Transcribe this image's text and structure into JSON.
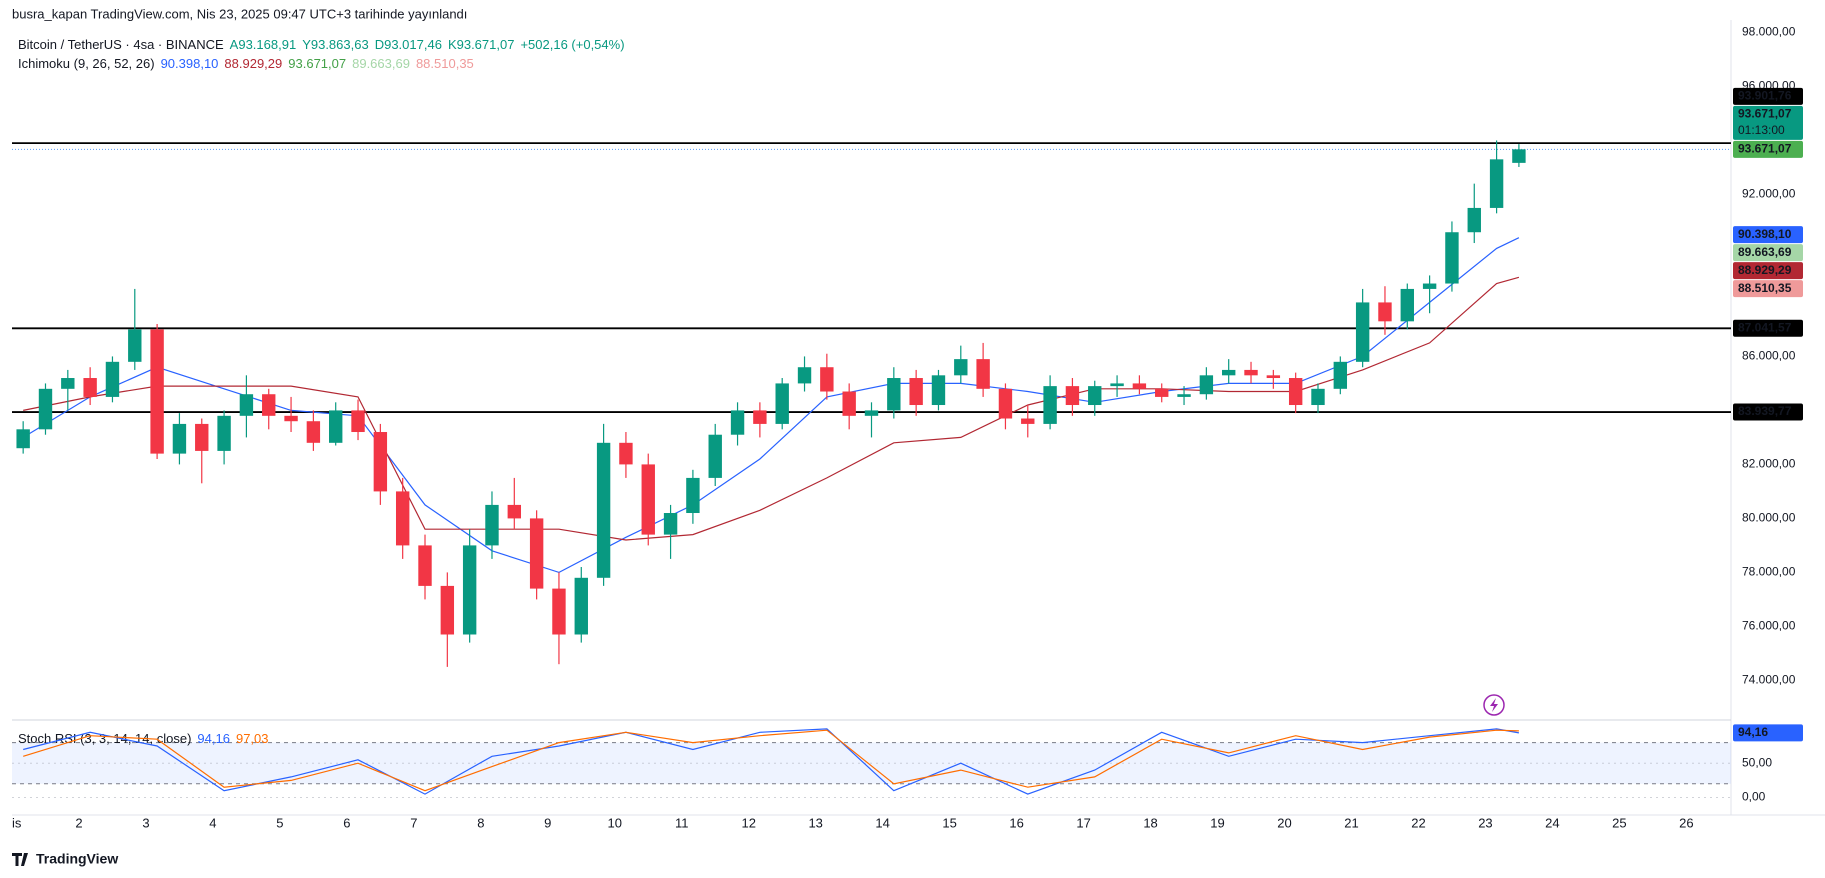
{
  "header": "busra_kapan TradingView.com, Nis 23, 2025 09:47 UTC+3 tarihinde yayınlandı",
  "footer": "TradingView",
  "chart_data": [
    {
      "type": "candlestick",
      "title": "Bitcoin / TetherUS · 4sa · BINANCE",
      "legend_values": [
        "A93.168,91",
        "Y93.863,63",
        "D93.017,46",
        "K93.671,07",
        "+502,16 (+0,54%)"
      ],
      "up_color": "#089981",
      "down_color": "#f23645",
      "open": [
        82600,
        83300,
        84800,
        85200,
        84500,
        85800,
        87000,
        82400,
        83500,
        82500,
        83800,
        84600,
        83800,
        83600,
        82800,
        84000,
        83200,
        81000,
        79000,
        77500,
        75700,
        79000,
        80500,
        80000,
        77400,
        75700,
        77800,
        82800,
        82000,
        79400,
        80200,
        81500,
        83100,
        84000,
        83500,
        85000,
        85600,
        84700,
        83800,
        84000,
        85200,
        84200,
        85300,
        85900,
        84800,
        83700,
        83500,
        84900,
        84200,
        84900,
        85000,
        84800,
        84500,
        84600,
        85300,
        85500,
        85300,
        85200,
        84200,
        84800,
        85800,
        88000,
        87300,
        88500,
        88700,
        90600,
        91500,
        93168.91
      ],
      "high": [
        83600,
        85000,
        85500,
        85600,
        86000,
        88500,
        87200,
        83900,
        83700,
        84000,
        85300,
        84800,
        84500,
        84000,
        84300,
        84400,
        83500,
        81500,
        79400,
        78000,
        79600,
        81000,
        81500,
        80300,
        78000,
        78200,
        83500,
        83200,
        82400,
        80500,
        81800,
        83500,
        84300,
        84300,
        85200,
        86000,
        86100,
        85000,
        84300,
        85600,
        85500,
        85500,
        86400,
        86500,
        85000,
        84200,
        85300,
        85200,
        85100,
        85300,
        85300,
        85000,
        84900,
        85600,
        85900,
        85800,
        85500,
        85400,
        85000,
        86000,
        88500,
        88600,
        88700,
        89000,
        91000,
        92400,
        94000,
        93863.63
      ],
      "low": [
        82400,
        83100,
        84000,
        84200,
        84300,
        85500,
        82200,
        82000,
        81300,
        82000,
        83000,
        83300,
        83200,
        82500,
        82700,
        82900,
        80500,
        78500,
        77000,
        74500,
        75400,
        78500,
        79600,
        77000,
        74600,
        75400,
        77500,
        81500,
        79000,
        78500,
        79800,
        81200,
        82700,
        83000,
        83300,
        84700,
        84400,
        83300,
        83000,
        83700,
        83800,
        84000,
        85000,
        84500,
        83300,
        83000,
        83300,
        83800,
        83800,
        84500,
        84600,
        84300,
        84200,
        84400,
        85000,
        85000,
        84800,
        83900,
        83900,
        84600,
        85600,
        86800,
        87000,
        87600,
        88400,
        90200,
        91300,
        93017.46
      ],
      "close": [
        83300,
        84800,
        85200,
        84500,
        85800,
        87000,
        82400,
        83500,
        82500,
        83800,
        84600,
        83800,
        83600,
        82800,
        84000,
        83200,
        81000,
        79000,
        77500,
        75700,
        79000,
        80500,
        80000,
        77400,
        75700,
        77800,
        82800,
        82000,
        79400,
        80200,
        81500,
        83100,
        84000,
        83500,
        85000,
        85600,
        84700,
        83800,
        84000,
        85200,
        84200,
        85300,
        85900,
        84800,
        83700,
        83500,
        84900,
        84200,
        84900,
        85000,
        84800,
        84500,
        84600,
        85300,
        85500,
        85300,
        85200,
        84200,
        84800,
        85800,
        88000,
        87300,
        88500,
        88700,
        90600,
        91500,
        93300,
        93671.07
      ],
      "indicator": "Ichimoku (9, 26, 52, 26)",
      "indicator_values": [
        {
          "label": "90.398,10",
          "color": "#2962ff"
        },
        {
          "label": "88.929,29",
          "color": "#b22833"
        },
        {
          "label": "93.671,07",
          "color": "#43a047"
        },
        {
          "label": "89.663,69",
          "color": "#a5d6a7"
        },
        {
          "label": "88.510,35",
          "color": "#ef9a9a"
        }
      ],
      "series": [
        {
          "color": "#2962ff",
          "x": [
            0,
            3,
            6,
            9,
            12,
            15,
            18,
            21,
            24,
            27,
            30,
            33,
            36,
            39,
            42,
            45,
            48,
            51,
            54,
            57,
            60,
            63,
            66,
            67
          ],
          "values": [
            83000,
            84500,
            85600,
            84800,
            84000,
            83800,
            80500,
            78800,
            78000,
            79300,
            80500,
            82200,
            84500,
            85000,
            85000,
            84700,
            84300,
            84700,
            85000,
            85000,
            86000,
            88000,
            90000,
            90398.1
          ]
        },
        {
          "color": "#b22833",
          "x": [
            0,
            3,
            6,
            9,
            12,
            15,
            18,
            21,
            24,
            27,
            30,
            33,
            36,
            39,
            42,
            45,
            48,
            51,
            54,
            57,
            60,
            63,
            66,
            67
          ],
          "values": [
            84000,
            84500,
            84900,
            84900,
            84900,
            84500,
            79600,
            79600,
            79600,
            79200,
            79400,
            80300,
            81500,
            82800,
            83000,
            84200,
            84800,
            84800,
            84700,
            84700,
            85500,
            86500,
            88700,
            88929.29
          ]
        }
      ],
      "levels": [
        93901.76,
        87041.57,
        83939.77
      ],
      "price_labels": [
        {
          "value": 93901.76,
          "label": "93.901,76",
          "color": "#000000",
          "text_color": "#ffffff"
        },
        {
          "value": 93671.07,
          "label": "93.671,07",
          "sublabel": "01:13:00",
          "color": "#089981",
          "text_color": "#ffffff"
        },
        {
          "value": 93671.07,
          "label": "93.671,07",
          "color": "#4caf50",
          "text_color": "#ffffff"
        },
        {
          "value": 90398.1,
          "label": "90.398,10",
          "color": "#2962ff",
          "text_color": "#ffffff"
        },
        {
          "value": 89663.69,
          "label": "89.663,69",
          "color": "#a5d6a7",
          "text_color": "#131722"
        },
        {
          "value": 88929.29,
          "label": "88.929,29",
          "color": "#b22833",
          "text_color": "#ffffff"
        },
        {
          "value": 88510.35,
          "label": "88.510,35",
          "color": "#ef9a9a",
          "text_color": "#131722"
        },
        {
          "value": 87041.57,
          "label": "87.041,57",
          "color": "#000000",
          "text_color": "#ffffff"
        },
        {
          "value": 83939.77,
          "label": "83.939,77",
          "color": "#000000",
          "text_color": "#ffffff"
        }
      ],
      "xlim": [
        0,
        77
      ],
      "xticks": [
        {
          "value": 0,
          "label": "is"
        },
        {
          "value": 3,
          "label": "2"
        },
        {
          "value": 6,
          "label": "3"
        },
        {
          "value": 9,
          "label": "4"
        },
        {
          "value": 12,
          "label": "5"
        },
        {
          "value": 15,
          "label": "6"
        },
        {
          "value": 18,
          "label": "7"
        },
        {
          "value": 21,
          "label": "8"
        },
        {
          "value": 24,
          "label": "9"
        },
        {
          "value": 27,
          "label": "10"
        },
        {
          "value": 30,
          "label": "11"
        },
        {
          "value": 33,
          "label": "12"
        },
        {
          "value": 36,
          "label": "13"
        },
        {
          "value": 39,
          "label": "14"
        },
        {
          "value": 42,
          "label": "15"
        },
        {
          "value": 45,
          "label": "16"
        },
        {
          "value": 48,
          "label": "17"
        },
        {
          "value": 51,
          "label": "18"
        },
        {
          "value": 54,
          "label": "19"
        },
        {
          "value": 57,
          "label": "20"
        },
        {
          "value": 60,
          "label": "21"
        },
        {
          "value": 63,
          "label": "22"
        },
        {
          "value": 66,
          "label": "23"
        },
        {
          "value": 69,
          "label": "24"
        },
        {
          "value": 72,
          "label": "25"
        },
        {
          "value": 75,
          "label": "26"
        }
      ],
      "ylim": [
        72570,
        98350
      ],
      "yticks": [
        {
          "value": 98000,
          "label": "98.000,00"
        },
        {
          "value": 96000,
          "label": "96.000,00"
        },
        {
          "value": 92000,
          "label": "92.000,00"
        },
        {
          "value": 86000,
          "label": "86.000,00"
        },
        {
          "value": 82000,
          "label": "82.000,00"
        },
        {
          "value": 80000,
          "label": "80.000,00"
        },
        {
          "value": 78000,
          "label": "78.000,00"
        },
        {
          "value": 76000,
          "label": "76.000,00"
        },
        {
          "value": 74000,
          "label": "74.000,00"
        }
      ]
    },
    {
      "type": "line",
      "title": "Stoch RSI (3, 3, 14, 14, close)",
      "series": [
        {
          "color": "#2962ff",
          "label": "94,16",
          "x": [
            0,
            3,
            6,
            9,
            12,
            15,
            18,
            21,
            24,
            27,
            30,
            33,
            36,
            39,
            42,
            45,
            48,
            51,
            54,
            57,
            60,
            63,
            66,
            67
          ],
          "values": [
            70,
            95,
            75,
            10,
            30,
            55,
            5,
            60,
            75,
            95,
            70,
            95,
            100,
            10,
            50,
            5,
            40,
            95,
            60,
            85,
            80,
            90,
            100,
            94.16
          ]
        },
        {
          "color": "#ff6d00",
          "label": "97,03",
          "x": [
            0,
            3,
            6,
            9,
            12,
            15,
            18,
            21,
            24,
            27,
            30,
            33,
            36,
            39,
            42,
            45,
            48,
            51,
            54,
            57,
            60,
            63,
            66,
            67
          ],
          "values": [
            60,
            90,
            85,
            15,
            25,
            50,
            10,
            45,
            80,
            95,
            80,
            90,
            98,
            20,
            40,
            15,
            30,
            85,
            65,
            90,
            70,
            88,
            98,
            97.03
          ]
        }
      ],
      "band": [
        20,
        80
      ],
      "price_labels": [
        {
          "value": 94.16,
          "label": "94,16",
          "color": "#2962ff",
          "text_color": "#ffffff"
        }
      ],
      "ylim": [
        -24,
        110
      ],
      "yticks": [
        {
          "value": 50,
          "label": "50,00"
        },
        {
          "value": 0,
          "label": "0,00"
        }
      ]
    }
  ]
}
